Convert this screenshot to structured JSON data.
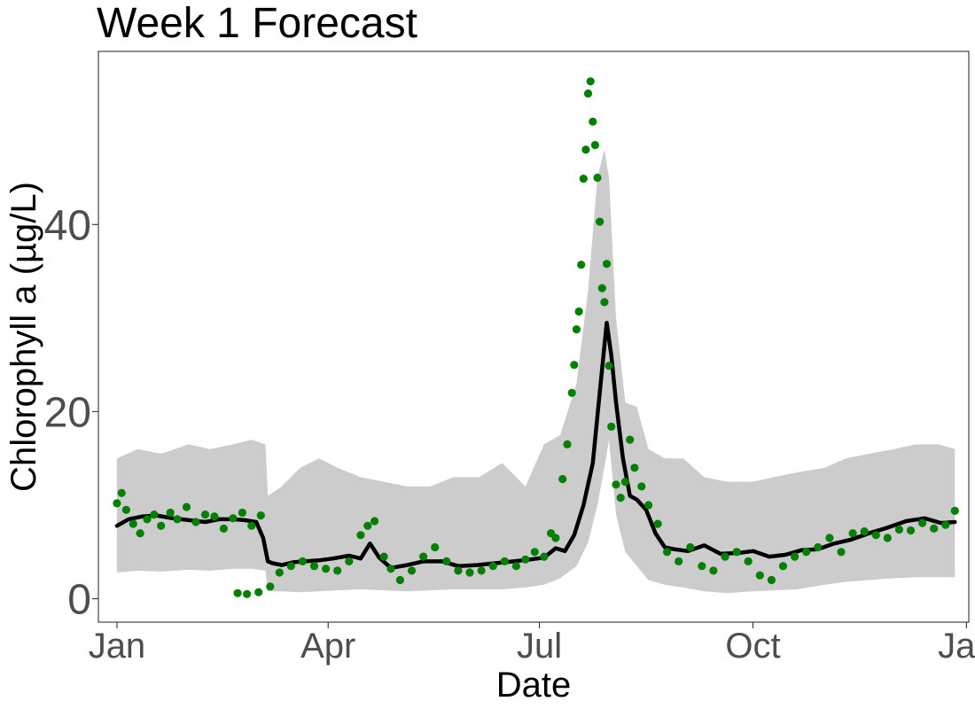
{
  "chart_data": {
    "type": "line",
    "title": "Week 1 Forecast",
    "xlabel": "Date",
    "ylabel": "Chlorophyll a (µg/L)",
    "x_ticks": [
      {
        "date": "2020-01-01",
        "label": "Jan"
      },
      {
        "date": "2020-04-01",
        "label": "Apr"
      },
      {
        "date": "2020-07-01",
        "label": "Jul"
      },
      {
        "date": "2020-10-01",
        "label": "Oct"
      },
      {
        "date": "2021-01-01",
        "label": "Jan"
      }
    ],
    "y_ticks": [
      0,
      20,
      40
    ],
    "xlim": [
      "2019-12-24",
      "2021-01-02"
    ],
    "ylim": [
      -2.5,
      58.5
    ],
    "grid": false,
    "colors": {
      "forecast_line": "#000000",
      "interval_band": "#cccccc",
      "observations": "#008000",
      "tick_label": "#4d4d4d"
    },
    "forecast": {
      "x": [
        "2020-01-01",
        "2020-01-06",
        "2020-01-12",
        "2020-01-18",
        "2020-01-25",
        "2020-02-01",
        "2020-02-08",
        "2020-02-14",
        "2020-02-20",
        "2020-02-25",
        "2020-03-01",
        "2020-03-04",
        "2020-03-06",
        "2020-03-08",
        "2020-03-12",
        "2020-03-17",
        "2020-03-22",
        "2020-03-28",
        "2020-04-03",
        "2020-04-10",
        "2020-04-15",
        "2020-04-19",
        "2020-04-23",
        "2020-04-28",
        "2020-05-05",
        "2020-05-12",
        "2020-05-20",
        "2020-05-27",
        "2020-06-04",
        "2020-06-12",
        "2020-06-20",
        "2020-06-27",
        "2020-07-03",
        "2020-07-08",
        "2020-07-12",
        "2020-07-16",
        "2020-07-20",
        "2020-07-24",
        "2020-07-27",
        "2020-07-30",
        "2020-08-01",
        "2020-08-03",
        "2020-08-06",
        "2020-08-09",
        "2020-08-12",
        "2020-08-16",
        "2020-08-20",
        "2020-08-24",
        "2020-08-28",
        "2020-09-03",
        "2020-09-10",
        "2020-09-17",
        "2020-09-25",
        "2020-10-01",
        "2020-10-08",
        "2020-10-15",
        "2020-10-22",
        "2020-10-29",
        "2020-11-05",
        "2020-11-12",
        "2020-11-20",
        "2020-11-28",
        "2020-12-06",
        "2020-12-14",
        "2020-12-21",
        "2020-12-27"
      ],
      "y": [
        7.8,
        8.5,
        8.8,
        8.9,
        8.6,
        8.4,
        8.2,
        8.5,
        8.5,
        8.4,
        8.2,
        6.5,
        4.0,
        3.8,
        3.6,
        3.9,
        4.0,
        4.1,
        4.3,
        4.6,
        4.3,
        5.9,
        4.4,
        3.3,
        3.6,
        4.0,
        4.0,
        3.5,
        3.6,
        3.8,
        4.0,
        4.2,
        4.4,
        5.4,
        5.1,
        6.8,
        10.0,
        14.5,
        22.0,
        29.5,
        26.0,
        21.0,
        15.0,
        11.0,
        10.6,
        9.5,
        7.0,
        5.5,
        5.3,
        5.1,
        5.7,
        4.8,
        4.9,
        5.1,
        4.5,
        4.7,
        5.2,
        5.3,
        5.9,
        6.3,
        7.0,
        7.6,
        8.3,
        8.6,
        8.1,
        8.2
      ]
    },
    "interval": {
      "x": [
        "2020-01-01",
        "2020-01-10",
        "2020-01-20",
        "2020-02-01",
        "2020-02-10",
        "2020-02-20",
        "2020-02-28",
        "2020-03-05",
        "2020-03-06",
        "2020-03-12",
        "2020-03-20",
        "2020-03-28",
        "2020-04-05",
        "2020-04-15",
        "2020-04-25",
        "2020-05-05",
        "2020-05-15",
        "2020-05-25",
        "2020-06-05",
        "2020-06-15",
        "2020-06-25",
        "2020-07-03",
        "2020-07-10",
        "2020-07-17",
        "2020-07-22",
        "2020-07-26",
        "2020-07-29",
        "2020-07-31",
        "2020-08-03",
        "2020-08-07",
        "2020-08-12",
        "2020-08-17",
        "2020-08-24",
        "2020-09-01",
        "2020-09-10",
        "2020-09-20",
        "2020-10-01",
        "2020-10-10",
        "2020-10-20",
        "2020-11-01",
        "2020-11-10",
        "2020-11-20",
        "2020-12-01",
        "2020-12-10",
        "2020-12-20",
        "2020-12-27"
      ],
      "lower": [
        2.8,
        3.0,
        2.9,
        3.1,
        3.0,
        3.2,
        3.2,
        3.0,
        0.8,
        0.8,
        0.7,
        0.8,
        0.9,
        1.0,
        0.9,
        0.8,
        0.9,
        1.0,
        1.0,
        1.0,
        1.2,
        1.5,
        2.2,
        3.5,
        6.0,
        10.0,
        14.0,
        17.0,
        9.0,
        5.0,
        3.5,
        2.0,
        1.5,
        1.2,
        0.8,
        0.6,
        0.8,
        0.9,
        1.0,
        1.5,
        1.8,
        2.0,
        2.2,
        2.3,
        2.3,
        2.3
      ],
      "upper": [
        15.0,
        16.0,
        15.5,
        16.5,
        16.0,
        16.5,
        17.0,
        16.5,
        11.0,
        12.0,
        14.0,
        15.0,
        14.0,
        13.0,
        12.5,
        12.0,
        12.0,
        13.0,
        13.0,
        14.5,
        12.0,
        16.5,
        17.5,
        23.0,
        33.0,
        45.0,
        48.0,
        45.0,
        30.0,
        21.0,
        20.5,
        16.0,
        15.0,
        15.0,
        13.0,
        12.5,
        12.5,
        13.0,
        13.5,
        14.0,
        15.0,
        15.5,
        16.0,
        16.5,
        16.5,
        16.0
      ]
    },
    "observations": {
      "x": [
        "2020-01-01",
        "2020-01-03",
        "2020-01-05",
        "2020-01-08",
        "2020-01-11",
        "2020-01-14",
        "2020-01-17",
        "2020-01-20",
        "2020-01-24",
        "2020-01-27",
        "2020-01-31",
        "2020-02-04",
        "2020-02-08",
        "2020-02-12",
        "2020-02-16",
        "2020-02-20",
        "2020-02-24",
        "2020-02-28",
        "2020-03-03",
        "2020-02-22",
        "2020-02-26",
        "2020-03-02",
        "2020-03-07",
        "2020-03-11",
        "2020-03-16",
        "2020-03-21",
        "2020-03-26",
        "2020-03-31",
        "2020-04-05",
        "2020-04-10",
        "2020-04-15",
        "2020-04-18",
        "2020-04-21",
        "2020-04-25",
        "2020-04-28",
        "2020-05-02",
        "2020-05-07",
        "2020-05-12",
        "2020-05-17",
        "2020-05-22",
        "2020-05-27",
        "2020-06-01",
        "2020-06-06",
        "2020-06-11",
        "2020-06-16",
        "2020-06-21",
        "2020-06-25",
        "2020-06-29",
        "2020-07-03",
        "2020-07-06",
        "2020-07-08",
        "2020-07-11",
        "2020-07-13",
        "2020-07-15",
        "2020-07-16",
        "2020-07-17",
        "2020-07-18",
        "2020-07-19",
        "2020-07-20",
        "2020-07-21",
        "2020-07-22",
        "2020-07-23",
        "2020-07-24",
        "2020-07-25",
        "2020-07-26",
        "2020-07-27",
        "2020-07-28",
        "2020-07-29",
        "2020-07-30",
        "2020-07-31",
        "2020-08-01",
        "2020-08-03",
        "2020-08-05",
        "2020-08-07",
        "2020-08-09",
        "2020-08-11",
        "2020-08-14",
        "2020-08-17",
        "2020-08-21",
        "2020-08-25",
        "2020-08-30",
        "2020-09-04",
        "2020-09-09",
        "2020-09-14",
        "2020-09-19",
        "2020-09-24",
        "2020-09-29",
        "2020-10-04",
        "2020-10-09",
        "2020-10-14",
        "2020-10-19",
        "2020-10-24",
        "2020-10-29",
        "2020-11-03",
        "2020-11-08",
        "2020-11-13",
        "2020-11-18",
        "2020-11-23",
        "2020-11-28",
        "2020-12-03",
        "2020-12-08",
        "2020-12-13",
        "2020-12-18",
        "2020-12-23",
        "2020-12-27"
      ],
      "y": [
        10.2,
        11.3,
        9.5,
        8.0,
        7.0,
        8.5,
        9.0,
        7.8,
        9.2,
        8.5,
        9.8,
        8.2,
        9.0,
        8.8,
        7.5,
        8.6,
        9.2,
        7.8,
        8.9,
        0.6,
        0.5,
        0.7,
        1.3,
        2.8,
        3.5,
        4.0,
        3.5,
        3.2,
        3.0,
        4.0,
        6.8,
        7.8,
        8.3,
        4.5,
        3.2,
        2.0,
        3.0,
        4.5,
        5.5,
        4.0,
        3.0,
        2.8,
        3.0,
        3.5,
        4.0,
        3.5,
        4.2,
        5.0,
        4.5,
        7.0,
        6.5,
        12.8,
        16.5,
        22.0,
        25.0,
        28.8,
        30.7,
        35.7,
        44.9,
        48.0,
        54.0,
        55.3,
        51.0,
        48.5,
        45.0,
        40.3,
        33.2,
        31.7,
        35.8,
        24.9,
        18.4,
        12.2,
        10.8,
        12.5,
        17.0,
        14.0,
        12.0,
        10.0,
        8.0,
        5.0,
        4.0,
        5.5,
        3.5,
        3.0,
        4.5,
        5.0,
        4.0,
        2.5,
        2.0,
        3.5,
        4.5,
        5.0,
        5.5,
        6.5,
        5.0,
        7.0,
        7.2,
        6.8,
        6.5,
        7.4,
        7.3,
        8.1,
        7.5,
        7.9,
        9.4
      ]
    }
  }
}
